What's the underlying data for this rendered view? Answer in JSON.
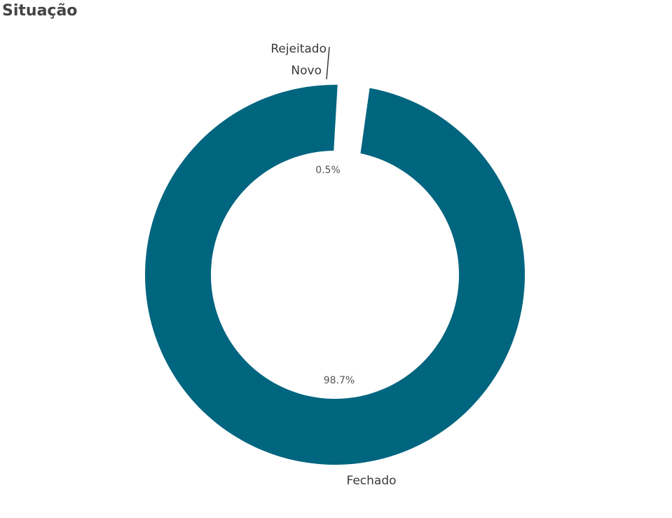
{
  "title": "Situação",
  "chart_data": {
    "type": "pie",
    "title": "Situação",
    "categories": [
      "Fechado",
      "Novo",
      "Rejeitado"
    ],
    "values": [
      98.7,
      0.5,
      0.8
    ],
    "value_labels": [
      "98.7%",
      "0.5%",
      ""
    ],
    "colors": [
      "#00657f",
      "#00657f",
      "#00657f"
    ]
  }
}
